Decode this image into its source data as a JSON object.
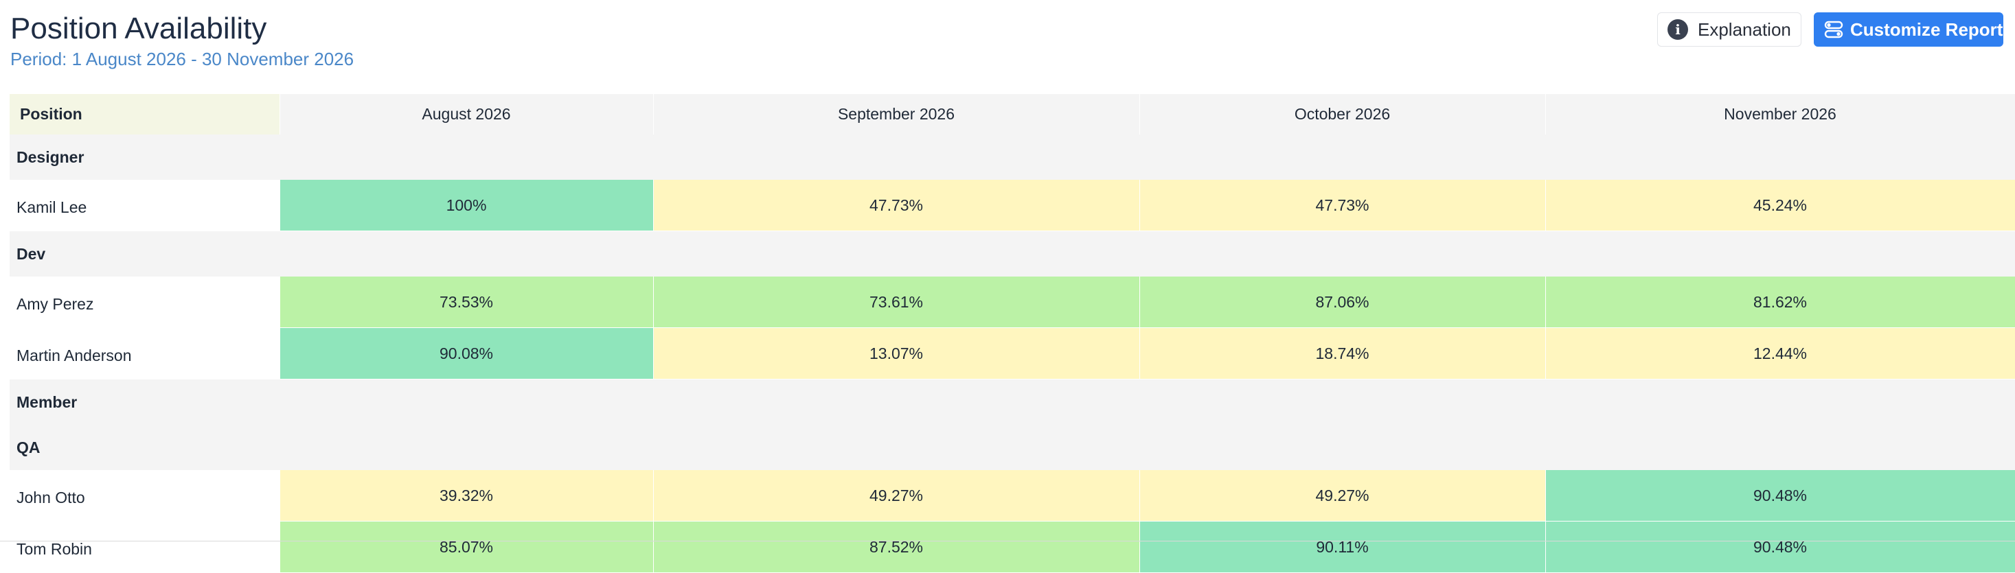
{
  "header": {
    "title": "Position Availability",
    "period": "Period: 1 August 2026 - 30 November 2026"
  },
  "actions": {
    "explanation_label": "Explanation",
    "explanation_icon": "info-icon",
    "customize_label": "Customize Report",
    "customize_icon": "toggles-icon"
  },
  "colors": {
    "accent": "#2f7ff0",
    "high": "#8fe5bb",
    "mid": "#bbf2a6",
    "low": "#fff6bf"
  },
  "table": {
    "columns": [
      "Position",
      "August 2026",
      "September 2026",
      "October 2026",
      "November 2026"
    ],
    "groups": [
      {
        "name": "Designer",
        "people": [
          {
            "name": "Kamil Lee",
            "values": [
              "100%",
              "47.73%",
              "47.73%",
              "45.24%"
            ],
            "levels": [
              "high",
              "low",
              "low",
              "low"
            ]
          }
        ]
      },
      {
        "name": "Dev",
        "people": [
          {
            "name": "Amy Perez",
            "values": [
              "73.53%",
              "73.61%",
              "87.06%",
              "81.62%"
            ],
            "levels": [
              "mid",
              "mid",
              "mid",
              "mid"
            ]
          },
          {
            "name": "Martin Anderson",
            "values": [
              "90.08%",
              "13.07%",
              "18.74%",
              "12.44%"
            ],
            "levels": [
              "high",
              "low",
              "low",
              "low"
            ]
          }
        ]
      },
      {
        "name": "Member",
        "people": []
      },
      {
        "name": "QA",
        "people": [
          {
            "name": "John Otto",
            "values": [
              "39.32%",
              "49.27%",
              "49.27%",
              "90.48%"
            ],
            "levels": [
              "low",
              "low",
              "low",
              "high"
            ]
          },
          {
            "name": "Tom Robin",
            "values": [
              "85.07%",
              "87.52%",
              "90.11%",
              "90.48%"
            ],
            "levels": [
              "mid",
              "mid",
              "high",
              "high"
            ]
          }
        ]
      }
    ]
  }
}
